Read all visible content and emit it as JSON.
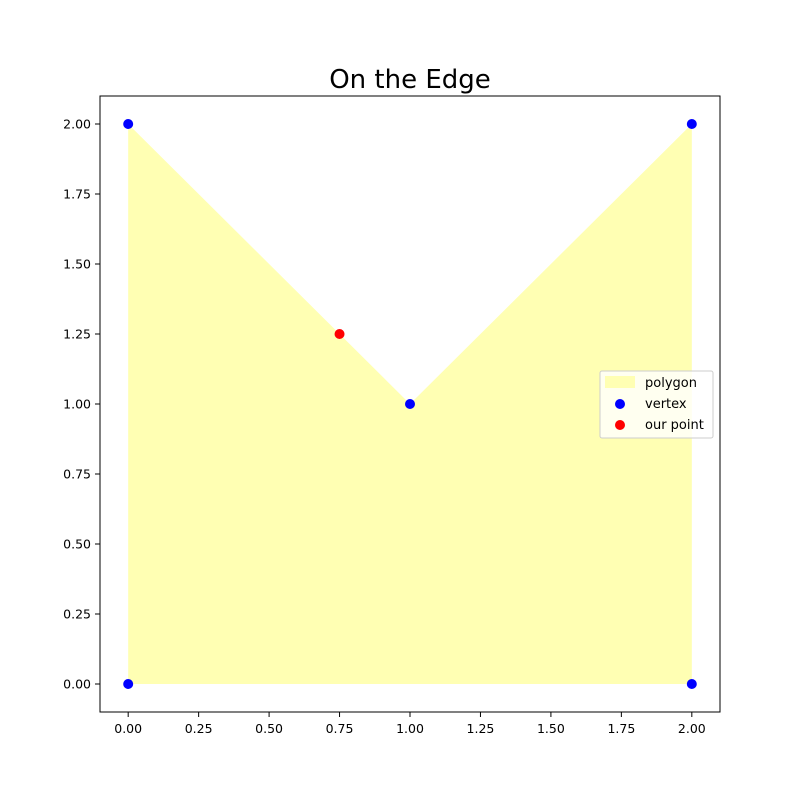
{
  "chart_data": {
    "type": "scatter",
    "title": "On the Edge",
    "xlabel": "",
    "ylabel": "",
    "xlim": [
      -0.1,
      2.1
    ],
    "ylim": [
      -0.1,
      2.1
    ],
    "grid": false,
    "x_ticks": [
      "0.00",
      "0.25",
      "0.50",
      "0.75",
      "1.00",
      "1.25",
      "1.50",
      "1.75",
      "2.00"
    ],
    "y_ticks": [
      "0.00",
      "0.25",
      "0.50",
      "0.75",
      "1.00",
      "1.25",
      "1.50",
      "1.75",
      "2.00"
    ],
    "polygon": {
      "name": "polygon",
      "color": "#ffffb3",
      "points": [
        {
          "x": 0,
          "y": 0
        },
        {
          "x": 0,
          "y": 2
        },
        {
          "x": 1,
          "y": 1
        },
        {
          "x": 2,
          "y": 2
        },
        {
          "x": 2,
          "y": 0
        }
      ]
    },
    "series": [
      {
        "name": "vertex",
        "color": "#0000ff",
        "points": [
          {
            "x": 0,
            "y": 0
          },
          {
            "x": 0,
            "y": 2
          },
          {
            "x": 1,
            "y": 1
          },
          {
            "x": 2,
            "y": 2
          },
          {
            "x": 2,
            "y": 0
          }
        ]
      },
      {
        "name": "our point",
        "color": "#ff0000",
        "points": [
          {
            "x": 0.75,
            "y": 1.25
          }
        ]
      }
    ],
    "legend": {
      "position": "center-right",
      "entries": [
        "polygon",
        "vertex",
        "our point"
      ]
    }
  }
}
